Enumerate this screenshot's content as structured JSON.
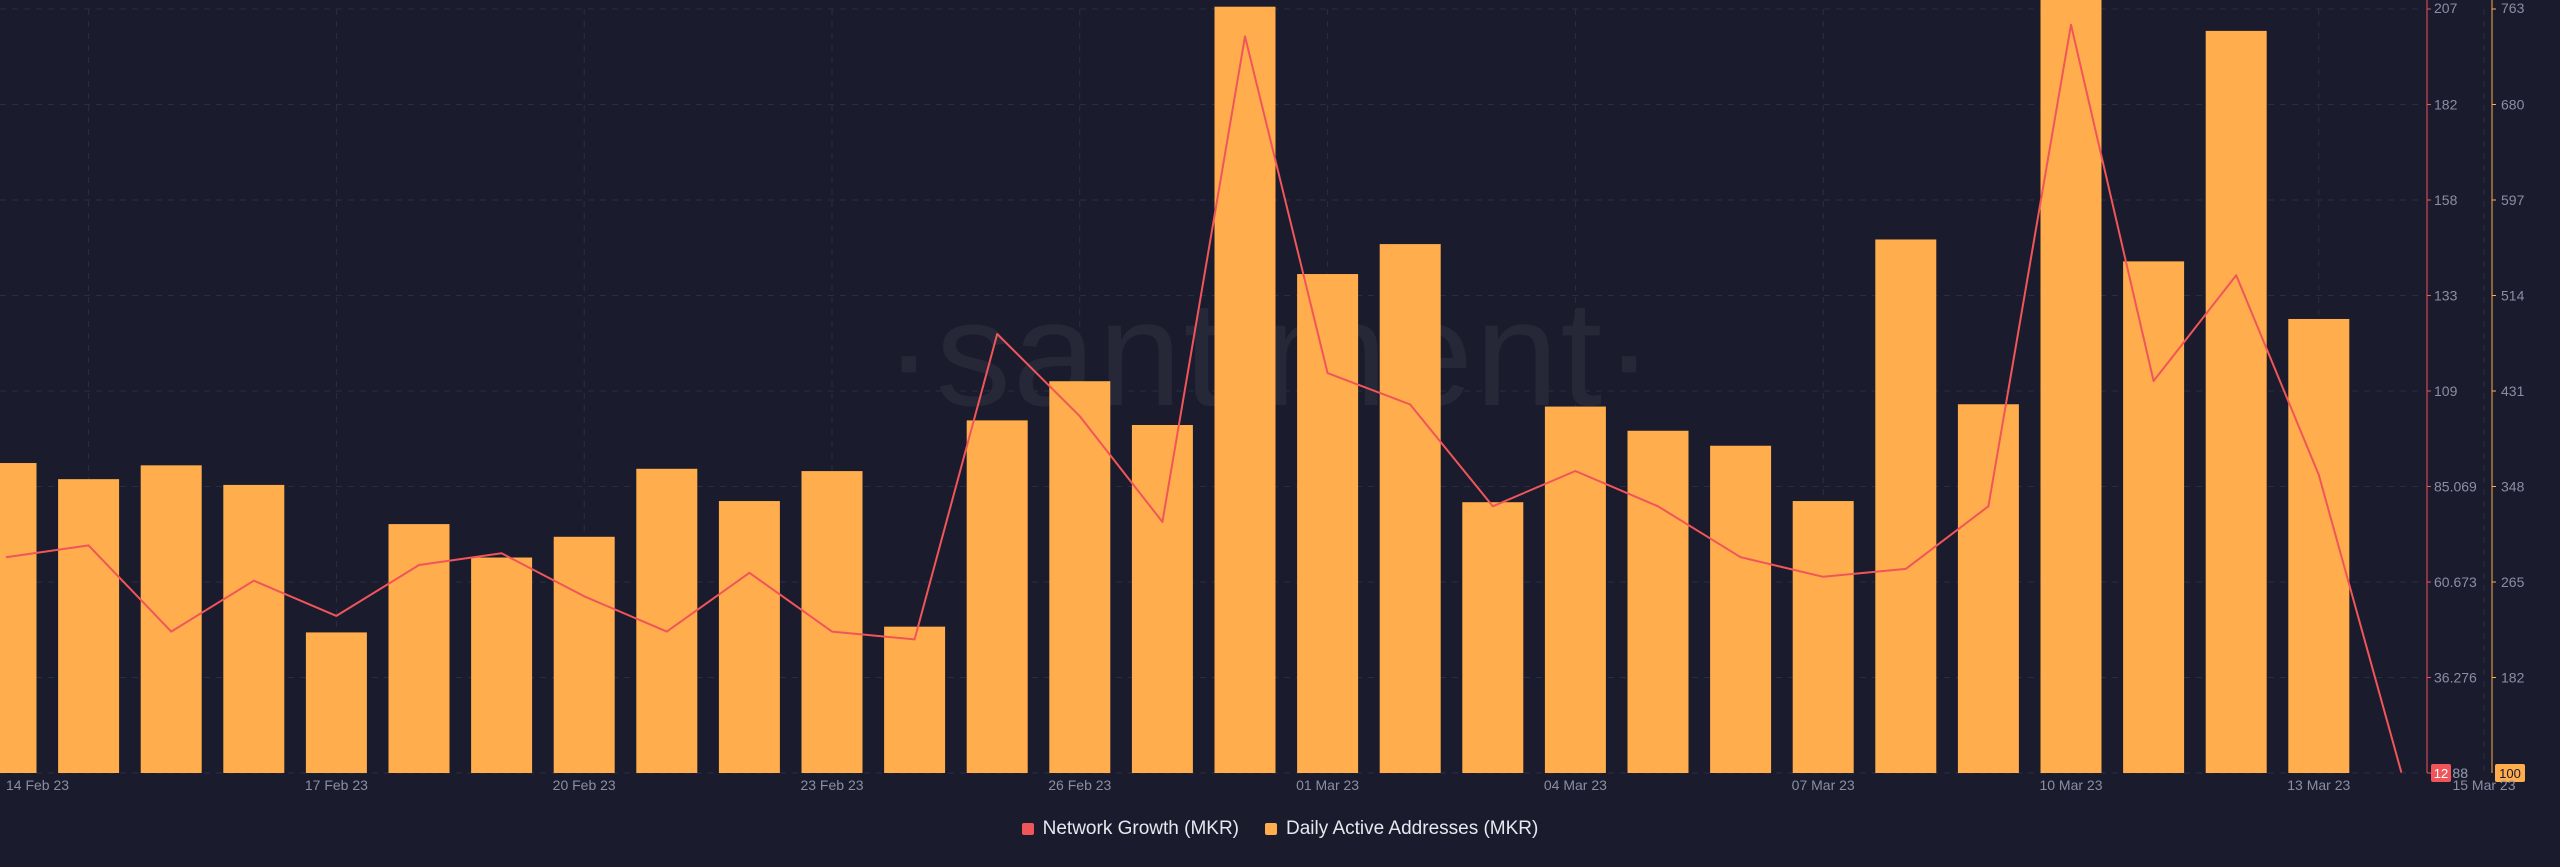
{
  "chart_data": {
    "type": "bar",
    "watermark": "·santiment·",
    "x_ticks": [
      "14 Feb 23",
      "17 Feb 23",
      "20 Feb 23",
      "23 Feb 23",
      "26 Feb 23",
      "01 Mar 23",
      "04 Mar 23",
      "07 Mar 23",
      "10 Mar 23",
      "13 Mar 23",
      "15 Mar 23"
    ],
    "categories": [
      "13 Feb 23",
      "14 Feb 23",
      "15 Feb 23",
      "16 Feb 23",
      "17 Feb 23",
      "18 Feb 23",
      "19 Feb 23",
      "20 Feb 23",
      "21 Feb 23",
      "22 Feb 23",
      "23 Feb 23",
      "24 Feb 23",
      "25 Feb 23",
      "26 Feb 23",
      "27 Feb 23",
      "28 Feb 23",
      "01 Mar 23",
      "02 Mar 23",
      "03 Mar 23",
      "04 Mar 23",
      "05 Mar 23",
      "06 Mar 23",
      "07 Mar 23",
      "08 Mar 23",
      "09 Mar 23",
      "10 Mar 23",
      "11 Mar 23",
      "12 Mar 23",
      "13 Mar 23",
      "14 Mar 23",
      "15 Mar 23"
    ],
    "series": [
      {
        "name": "Network Growth (MKR)",
        "type": "line",
        "axis": "right-inner",
        "color": "#f0555a",
        "values": [
          67,
          70,
          48,
          61,
          52,
          65,
          68,
          57,
          48,
          63,
          48,
          46,
          124,
          103,
          76,
          200,
          114,
          106,
          80,
          89,
          80,
          67,
          62,
          64,
          80,
          203,
          112,
          139,
          88,
          12,
          null
        ]
      },
      {
        "name": "Daily Active Addresses (MKR)",
        "type": "bar",
        "axis": "right-outer",
        "color": "#ffad4d",
        "values": [
          369,
          355,
          367,
          350,
          222,
          316,
          287,
          305,
          364,
          336,
          362,
          227,
          406,
          440,
          402,
          765,
          533,
          559,
          335,
          418,
          397,
          384,
          336,
          563,
          420,
          778,
          544,
          744,
          494,
          null,
          null
        ]
      }
    ],
    "y_axis_inner": {
      "color": "#f0555a",
      "ticks": [
        "207",
        "182",
        "158",
        "133",
        "109",
        "85.069",
        "60.673",
        "36.276",
        "11.88"
      ],
      "min": 11.88,
      "max": 207,
      "last_value_badge": "12"
    },
    "y_axis_outer": {
      "color": "#ffad4d",
      "ticks": [
        "763",
        "680",
        "597",
        "514",
        "431",
        "348",
        "265",
        "182",
        "100"
      ],
      "min": 100,
      "max": 763
    },
    "legend": [
      "Network Growth (MKR)",
      "Daily Active Addresses (MKR)"
    ],
    "legend_position": "bottom-center",
    "grid": true,
    "colors": {
      "background": "#1a1b2c",
      "grid": "#2b2d42",
      "line": "#f0555a",
      "bar": "#ffad4d",
      "tick_text": "#8a8fa5"
    }
  }
}
